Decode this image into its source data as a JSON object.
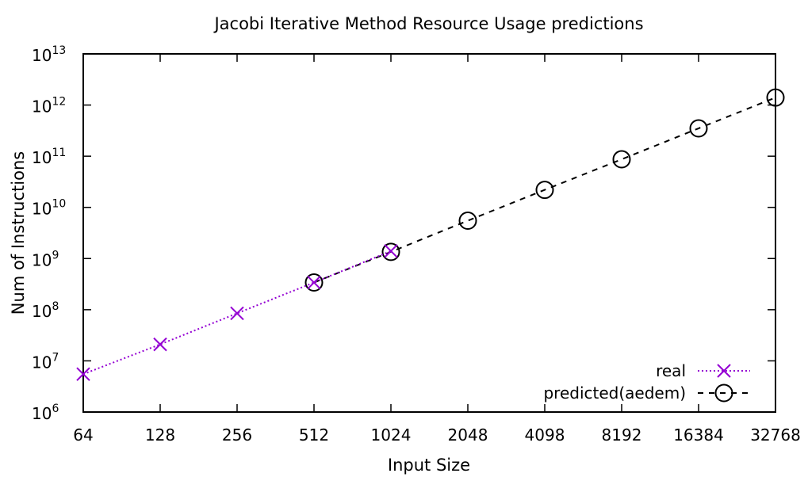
{
  "chart_data": {
    "type": "line",
    "title": "Jacobi Iterative Method Resource Usage predictions",
    "xlabel": "Input Size",
    "ylabel": "Num of Instructions",
    "x_scale": "log2",
    "y_scale": "log10",
    "categories": [
      "64",
      "128",
      "256",
      "512",
      "1024",
      "2048",
      "4098",
      "8192",
      "16384",
      "32768"
    ],
    "y_ticks": [
      {
        "base": "10",
        "exp": "6"
      },
      {
        "base": "10",
        "exp": "7"
      },
      {
        "base": "10",
        "exp": "8"
      },
      {
        "base": "10",
        "exp": "9"
      },
      {
        "base": "10",
        "exp": "10"
      },
      {
        "base": "10",
        "exp": "11"
      },
      {
        "base": "10",
        "exp": "12"
      },
      {
        "base": "10",
        "exp": "13"
      }
    ],
    "ylim": [
      1000000,
      10000000000000
    ],
    "grid": false,
    "legend_position": "bottom-right",
    "series": [
      {
        "name": "real",
        "color": "#9400d3",
        "marker": "x",
        "line_style": "dotted",
        "x": [
          "64",
          "128",
          "256",
          "512",
          "1024"
        ],
        "values": [
          5500000,
          21000000,
          85000000,
          340000000,
          1400000000
        ]
      },
      {
        "name": "predicted(aedem)",
        "color": "#000000",
        "marker": "circle",
        "line_style": "dashed",
        "x": [
          "512",
          "1024",
          "2048",
          "4098",
          "8192",
          "16384",
          "32768"
        ],
        "values": [
          340000000,
          1350000000,
          5500000000,
          22000000000,
          87000000000,
          350000000000,
          1400000000000
        ]
      }
    ]
  }
}
